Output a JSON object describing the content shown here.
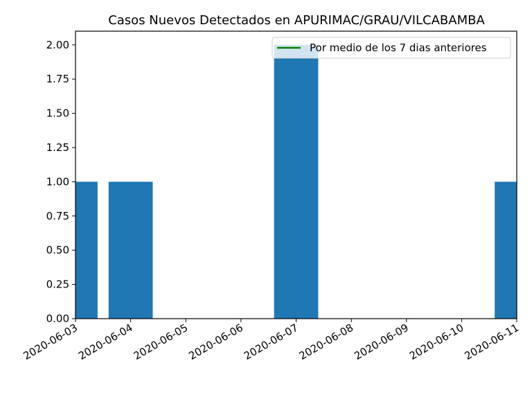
{
  "chart_data": {
    "type": "bar",
    "title": "Casos Nuevos Detectados en APURIMAC/GRAU/VILCABAMBA",
    "xlabel": "",
    "ylabel": "",
    "x_tick_labels": [
      "2020-06-03",
      "2020-06-04",
      "2020-06-05",
      "2020-06-06",
      "2020-06-07",
      "2020-06-08",
      "2020-06-09",
      "2020-06-10",
      "2020-06-11"
    ],
    "y_tick_labels": [
      "0.00",
      "0.25",
      "0.50",
      "0.75",
      "1.00",
      "1.25",
      "1.50",
      "1.75",
      "2.00"
    ],
    "xlim": [
      "2020-06-03",
      "2020-06-11"
    ],
    "ylim": [
      0,
      2.1
    ],
    "bars": [
      {
        "date": "2020-06-03",
        "value": 1
      },
      {
        "date": "2020-06-04",
        "value": 1
      },
      {
        "date": "2020-06-07",
        "value": 2
      },
      {
        "date": "2020-06-11",
        "value": 1
      }
    ],
    "bar_color": "#1f77b4",
    "legend": {
      "placement": "top-right",
      "entries": [
        {
          "label": "Por medio de los 7 dias anteriores",
          "color": "#008000",
          "marker": "line"
        }
      ]
    },
    "grid": false
  }
}
